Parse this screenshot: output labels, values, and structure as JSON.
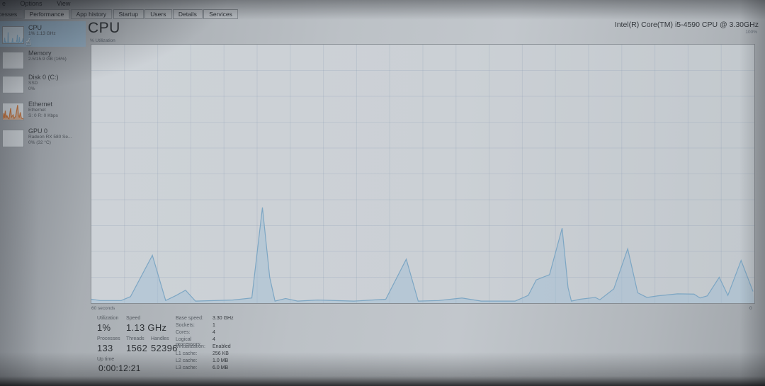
{
  "window": {
    "menu": [
      "e",
      "Options",
      "View"
    ],
    "tabs": [
      "ocesses",
      "Performance",
      "App history",
      "Startup",
      "Users",
      "Details",
      "Services"
    ],
    "active_tab": "Performance"
  },
  "sidebar": {
    "items": [
      {
        "title": "CPU",
        "line1": "1% 1.13 GHz",
        "line2": "",
        "selected": true
      },
      {
        "title": "Memory",
        "line1": "2.5/15.9 GB (16%)",
        "line2": "",
        "selected": false
      },
      {
        "title": "Disk 0 (C:)",
        "line1": "SSD",
        "line2": "0%",
        "selected": false
      },
      {
        "title": "Ethernet",
        "line1": "Ethernet",
        "line2": "S: 0 R: 0 Kbps",
        "selected": false
      },
      {
        "title": "GPU 0",
        "line1": "Radeon RX 580 Se...",
        "line2": "0% (32 °C)",
        "selected": false
      }
    ]
  },
  "main": {
    "title": "CPU",
    "cpu_name": "Intel(R) Core(TM) i5-4590 CPU @ 3.30GHz",
    "graph": {
      "y_axis_label": "% Utilization",
      "y_max_label": "100%",
      "x_left_label": "60 seconds",
      "x_right_label": "0",
      "line_color": "#7da6c3",
      "fill_color": "rgba(158,188,213,0.45)",
      "grid_color": "rgba(130,152,178,0.22)"
    },
    "stats": {
      "utilization_label": "Utilization",
      "utilization_value": "1%",
      "speed_label": "Speed",
      "speed_value": "1.13 GHz",
      "processes_label": "Processes",
      "processes_value": "133",
      "threads_label": "Threads",
      "threads_value": "1562",
      "handles_label": "Handles",
      "handles_value": "52396",
      "uptime_label": "Up time",
      "uptime_value": "0:00:12:21"
    },
    "specs": [
      {
        "label": "Base speed:",
        "value": "3.30 GHz"
      },
      {
        "label": "Sockets:",
        "value": "1"
      },
      {
        "label": "Cores:",
        "value": "4"
      },
      {
        "label": "Logical processors:",
        "value": "4"
      },
      {
        "label": "Virtualization:",
        "value": "Enabled"
      },
      {
        "label": "L1 cache:",
        "value": "256 KB"
      },
      {
        "label": "L2 cache:",
        "value": "1.0 MB"
      },
      {
        "label": "L3 cache:",
        "value": "6.0 MB"
      }
    ]
  },
  "chart_data": {
    "type": "area",
    "title": "CPU % Utilization over 60 seconds",
    "xlabel": "60 seconds window",
    "ylabel": "% Utilization",
    "ylim": [
      0,
      100
    ],
    "points": [
      [
        0.0,
        1.5
      ],
      [
        0.013,
        1.0
      ],
      [
        0.045,
        1.0
      ],
      [
        0.059,
        2.5
      ],
      [
        0.092,
        18.5
      ],
      [
        0.112,
        1.0
      ],
      [
        0.128,
        3.0
      ],
      [
        0.142,
        5.0
      ],
      [
        0.157,
        0.8
      ],
      [
        0.213,
        1.2
      ],
      [
        0.242,
        2.0
      ],
      [
        0.258,
        37.0
      ],
      [
        0.269,
        10.0
      ],
      [
        0.277,
        0.8
      ],
      [
        0.293,
        1.8
      ],
      [
        0.311,
        0.8
      ],
      [
        0.341,
        1.2
      ],
      [
        0.396,
        0.8
      ],
      [
        0.444,
        1.5
      ],
      [
        0.475,
        17.0
      ],
      [
        0.493,
        0.8
      ],
      [
        0.524,
        1.0
      ],
      [
        0.559,
        2.0
      ],
      [
        0.588,
        0.8
      ],
      [
        0.639,
        0.8
      ],
      [
        0.659,
        3.0
      ],
      [
        0.671,
        9.0
      ],
      [
        0.691,
        11.0
      ],
      [
        0.71,
        29.0
      ],
      [
        0.719,
        6.0
      ],
      [
        0.724,
        0.8
      ],
      [
        0.737,
        1.5
      ],
      [
        0.76,
        2.2
      ],
      [
        0.767,
        1.3
      ],
      [
        0.788,
        5.5
      ],
      [
        0.809,
        21.0
      ],
      [
        0.824,
        4.0
      ],
      [
        0.838,
        2.2
      ],
      [
        0.854,
        2.8
      ],
      [
        0.884,
        3.6
      ],
      [
        0.909,
        3.5
      ],
      [
        0.918,
        2.0
      ],
      [
        0.929,
        2.8
      ],
      [
        0.947,
        10.0
      ],
      [
        0.96,
        3.0
      ],
      [
        0.98,
        16.5
      ],
      [
        0.998,
        4.5
      ]
    ],
    "ethernet_mini_points": [
      [
        0.0,
        5
      ],
      [
        0.05,
        40
      ],
      [
        0.08,
        10
      ],
      [
        0.12,
        55
      ],
      [
        0.15,
        8
      ],
      [
        0.2,
        25
      ],
      [
        0.25,
        10
      ],
      [
        0.3,
        5
      ],
      [
        0.38,
        70
      ],
      [
        0.42,
        15
      ],
      [
        0.5,
        30
      ],
      [
        0.55,
        8
      ],
      [
        0.62,
        20
      ],
      [
        0.68,
        60
      ],
      [
        0.72,
        90
      ],
      [
        0.76,
        30
      ],
      [
        0.8,
        12
      ],
      [
        0.85,
        45
      ],
      [
        0.9,
        10
      ],
      [
        1.0,
        5
      ]
    ],
    "ethernet_color": "#b06a3c"
  }
}
